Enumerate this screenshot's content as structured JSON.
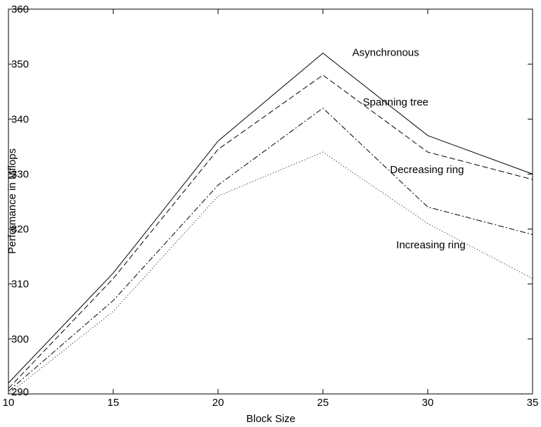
{
  "chart_data": {
    "type": "line",
    "xlabel": "Block Size",
    "ylabel": "Performance in Mflops",
    "xlim": [
      10,
      35
    ],
    "ylim": [
      290,
      360
    ],
    "xticks": [
      10,
      15,
      20,
      25,
      30,
      35
    ],
    "yticks": [
      290,
      300,
      310,
      320,
      330,
      340,
      350,
      360
    ],
    "grid": false,
    "x": [
      10,
      15,
      20,
      25,
      30,
      35
    ],
    "series": [
      {
        "name": "Asynchronous",
        "values": [
          292,
          312,
          336,
          352,
          337,
          330
        ],
        "line_style": "solid",
        "label_at": [
          26.4,
          351.5
        ]
      },
      {
        "name": "Spanning tree",
        "values": [
          291,
          311,
          334.5,
          348,
          334,
          329
        ],
        "line_style": "dashed",
        "label_at": [
          26.9,
          342.5
        ]
      },
      {
        "name": "Decreasing ring",
        "values": [
          290.5,
          307,
          328,
          342,
          324,
          319
        ],
        "line_style": "dashdot",
        "label_at": [
          28.2,
          330.2
        ]
      },
      {
        "name": "Increasing ring",
        "values": [
          290,
          305,
          326,
          334,
          321,
          311
        ],
        "line_style": "dotted",
        "label_at": [
          28.5,
          316.5
        ]
      }
    ],
    "colors": {
      "line": "#000000",
      "background": "#ffffff"
    }
  }
}
